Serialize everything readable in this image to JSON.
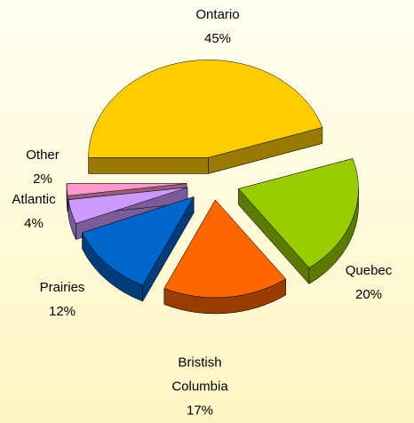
{
  "chart_data": {
    "type": "pie",
    "categories": [
      "Ontario",
      "Quebec",
      "Bristish Columbia",
      "Prairies",
      "Atlantic",
      "Other"
    ],
    "values": [
      45,
      20,
      17,
      12,
      4,
      2
    ],
    "value_labels": [
      "45%",
      "20%",
      "17%",
      "12%",
      "4%",
      "2%"
    ],
    "colors": [
      "#ffcc00",
      "#99cc00",
      "#ff6600",
      "#0066cc",
      "#cc99ff",
      "#ff99cc"
    ]
  }
}
